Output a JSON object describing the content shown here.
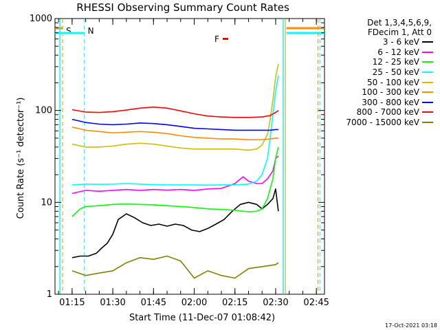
{
  "chart_data": {
    "type": "line",
    "title": "RHESSI Observing Summary Count Rates",
    "xlabel": "Start Time (11-Dec-07 01:08:42)",
    "ylabel": "Count Rate (s⁻¹ detector⁻¹)",
    "y_scale": "log",
    "ylim": [
      1,
      1000
    ],
    "xlim_minutes": [
      68.7,
      168
    ],
    "x_ticks": [
      "01:15",
      "01:30",
      "01:45",
      "02:00",
      "02:15",
      "02:30",
      "02:45"
    ],
    "y_ticks": [
      "1",
      "10",
      "100",
      "1000"
    ],
    "legend_header": [
      "Det 1,3,4,5,6,9,",
      "FDecim 1, Att 0"
    ],
    "series": [
      {
        "name": "3 - 6 keV",
        "color": "#000000",
        "x": [
          75,
          78,
          81,
          84,
          86,
          88,
          90,
          92,
          95,
          98,
          101,
          104,
          107,
          110,
          113,
          116,
          119,
          122,
          125,
          128,
          131,
          134,
          137,
          140,
          143,
          145,
          147,
          149,
          150,
          151
        ],
        "y": [
          2.5,
          2.6,
          2.6,
          2.8,
          3.2,
          3.6,
          4.5,
          6.5,
          7.5,
          6.8,
          6,
          5.6,
          5.8,
          5.5,
          5.8,
          5.6,
          5,
          4.8,
          5.2,
          5.8,
          6.5,
          8,
          9.5,
          10,
          9.5,
          8.5,
          9.5,
          11,
          14,
          8
        ]
      },
      {
        "name": "6 - 12 keV",
        "color": "#ff00ff",
        "x": [
          75,
          80,
          85,
          90,
          95,
          100,
          105,
          110,
          115,
          120,
          125,
          130,
          135,
          138,
          140,
          143,
          145,
          147,
          149,
          150,
          151
        ],
        "y": [
          12.5,
          13.5,
          13.2,
          13.5,
          13.8,
          13.5,
          13.8,
          13.6,
          13.8,
          13.5,
          14,
          14.2,
          16,
          19,
          17,
          16,
          16,
          18,
          22,
          30,
          32
        ]
      },
      {
        "name": "12 - 25 keV",
        "color": "#00ff00",
        "x": [
          75,
          78,
          80,
          85,
          90,
          95,
          100,
          105,
          110,
          115,
          120,
          125,
          130,
          135,
          140,
          143,
          145,
          147,
          149,
          150,
          151
        ],
        "y": [
          7,
          8.5,
          9,
          9.2,
          9.5,
          9.6,
          9.5,
          9.4,
          9.2,
          9,
          8.8,
          8.5,
          8.4,
          8.2,
          7.9,
          8,
          8.5,
          11,
          18,
          30,
          40
        ]
      },
      {
        "name": "25 - 50 keV",
        "color": "#00ffff",
        "x": [
          75,
          80,
          85,
          90,
          95,
          100,
          105,
          110,
          115,
          120,
          125,
          130,
          135,
          140,
          143,
          145,
          147,
          148,
          149,
          150,
          151
        ],
        "y": [
          15.5,
          15.8,
          15.7,
          15.8,
          16,
          15.8,
          15.6,
          15.5,
          15.5,
          15.5,
          15.4,
          15.5,
          15.5,
          15.8,
          17,
          20,
          30,
          50,
          90,
          160,
          240
        ]
      },
      {
        "name": "50 - 100 keV",
        "color": "#ccc000",
        "x": [
          75,
          80,
          85,
          90,
          95,
          100,
          105,
          110,
          115,
          120,
          125,
          130,
          135,
          140,
          143,
          145,
          147,
          148,
          149,
          150,
          151
        ],
        "y": [
          43,
          40,
          40,
          41,
          43,
          44,
          43,
          41,
          39,
          38,
          38,
          38,
          38,
          37,
          38,
          42,
          55,
          80,
          130,
          230,
          320
        ]
      },
      {
        "name": "100 - 300 keV",
        "color": "#ff8c00",
        "x": [
          75,
          80,
          85,
          90,
          95,
          100,
          105,
          110,
          115,
          120,
          125,
          130,
          135,
          140,
          145,
          148,
          150,
          151
        ],
        "y": [
          66,
          61,
          59,
          57,
          58,
          59,
          58,
          56,
          53,
          51,
          50,
          49,
          49,
          48,
          48,
          49,
          50,
          50
        ]
      },
      {
        "name": "300 - 800 keV",
        "color": "#0000ff",
        "x": [
          75,
          80,
          85,
          90,
          95,
          100,
          105,
          110,
          115,
          120,
          125,
          130,
          135,
          140,
          145,
          148,
          150,
          151
        ],
        "y": [
          80,
          74,
          71,
          70,
          71,
          73,
          72,
          70,
          67,
          64,
          63,
          62,
          61,
          61,
          61,
          61,
          62,
          62
        ]
      },
      {
        "name": "800 - 7000 keV",
        "color": "#ff0000",
        "x": [
          75,
          80,
          85,
          90,
          95,
          100,
          105,
          110,
          115,
          120,
          125,
          130,
          135,
          140,
          145,
          148,
          150,
          151
        ],
        "y": [
          102,
          96,
          95,
          97,
          101,
          106,
          109,
          106,
          99,
          92,
          87,
          85,
          84,
          84,
          85,
          88,
          95,
          100
        ]
      },
      {
        "name": "7000 - 15000 keV",
        "color": "#808000",
        "x": [
          75,
          80,
          85,
          90,
          95,
          100,
          105,
          110,
          115,
          120,
          125,
          130,
          135,
          140,
          145,
          150,
          151
        ],
        "y": [
          1.8,
          1.6,
          1.7,
          1.8,
          2.2,
          2.5,
          2.4,
          2.6,
          2.3,
          1.5,
          1.8,
          1.6,
          1.5,
          1.9,
          2.0,
          2.1,
          2.2
        ]
      }
    ],
    "markers": [
      {
        "label": "S",
        "color": "#ff8c00",
        "x": 71.5
      },
      {
        "label": "N",
        "color": "#00ffff",
        "x": 79.5
      },
      {
        "label": "F",
        "color": "#ff0000",
        "x": 130
      }
    ],
    "night_bar_color": "#00ffff",
    "saa_bar_color": "#ff8c00",
    "flare_bar_color": "#ff0000"
  },
  "timestamp": "17-Oct-2021 03:18"
}
